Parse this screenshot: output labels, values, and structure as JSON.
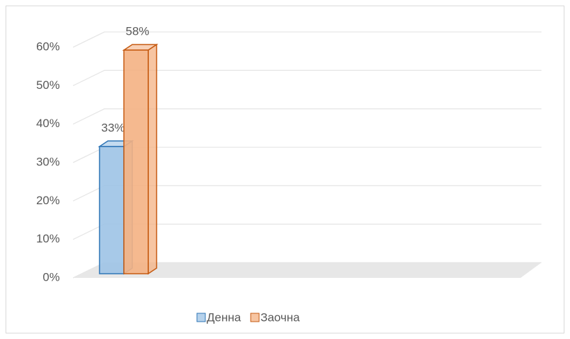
{
  "chart_data": {
    "type": "bar3d",
    "series": [
      {
        "name": "Денна",
        "color": "#2e75b6",
        "fill": "#9dc3e6",
        "values": [
          33
        ],
        "value_labels": [
          "33%"
        ]
      },
      {
        "name": "Заочна",
        "color": "#c55a11",
        "fill": "#f4b183",
        "values": [
          58
        ],
        "value_labels": [
          "58%"
        ]
      }
    ],
    "ylim": [
      0,
      60
    ],
    "yticks": [
      {
        "value": 0,
        "label": "0%"
      },
      {
        "value": 10,
        "label": "10%"
      },
      {
        "value": 20,
        "label": "20%"
      },
      {
        "value": 30,
        "label": "30%"
      },
      {
        "value": 40,
        "label": "40%"
      },
      {
        "value": 50,
        "label": "50%"
      },
      {
        "value": 60,
        "label": "60%"
      }
    ],
    "grid": true,
    "legend": "bottom"
  }
}
